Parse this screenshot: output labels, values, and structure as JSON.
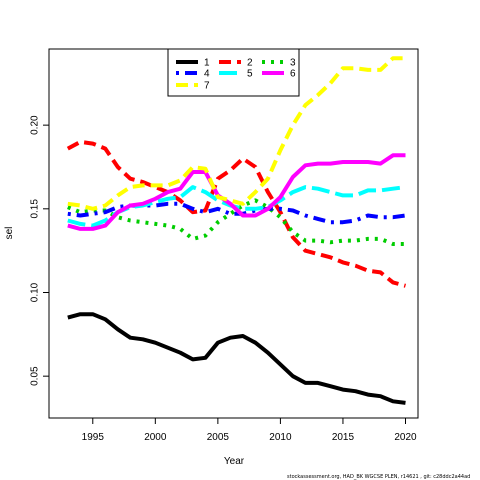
{
  "chart_data": {
    "type": "line",
    "title": "",
    "xlabel": "Year",
    "ylabel": "sel",
    "xlim": [
      1991.5,
      2021
    ],
    "ylim": [
      0.025,
      0.2455
    ],
    "x_ticks": [
      1995,
      2000,
      2005,
      2010,
      2015,
      2020
    ],
    "y_ticks": [
      0.05,
      0.1,
      0.15,
      0.2
    ],
    "y_tick_labels": [
      "0.05",
      "0.10",
      "0.15",
      "0.20"
    ],
    "legend_position": "top-center",
    "x": [
      1993,
      1994,
      1995,
      1996,
      1997,
      1998,
      1999,
      2000,
      2001,
      2002,
      2003,
      2004,
      2005,
      2006,
      2007,
      2008,
      2009,
      2010,
      2011,
      2012,
      2013,
      2014,
      2015,
      2016,
      2017,
      2018,
      2019,
      2020
    ],
    "series": [
      {
        "name": "1",
        "color": "#000000",
        "dash": "solid",
        "values": [
          0.085,
          0.087,
          0.087,
          0.084,
          0.078,
          0.073,
          0.072,
          0.07,
          0.067,
          0.064,
          0.06,
          0.061,
          0.07,
          0.073,
          0.074,
          0.07,
          0.064,
          0.057,
          0.05,
          0.046,
          0.046,
          0.044,
          0.042,
          0.041,
          0.039,
          0.038,
          0.035,
          0.034
        ]
      },
      {
        "name": "2",
        "color": "#ff0000",
        "dash": "dashed",
        "values": [
          0.186,
          0.19,
          0.189,
          0.186,
          0.175,
          0.168,
          0.166,
          0.163,
          0.16,
          0.155,
          0.148,
          0.149,
          0.168,
          0.173,
          0.18,
          0.175,
          0.16,
          0.148,
          0.133,
          0.125,
          0.123,
          0.121,
          0.118,
          0.116,
          0.113,
          0.112,
          0.106,
          0.104
        ]
      },
      {
        "name": "3",
        "color": "#00cd00",
        "dash": "dotted",
        "values": [
          0.151,
          0.148,
          0.149,
          0.149,
          0.145,
          0.143,
          0.142,
          0.141,
          0.14,
          0.138,
          0.132,
          0.134,
          0.142,
          0.147,
          0.152,
          0.155,
          0.151,
          0.145,
          0.136,
          0.131,
          0.131,
          0.13,
          0.131,
          0.131,
          0.132,
          0.132,
          0.129,
          0.129
        ]
      },
      {
        "name": "4",
        "color": "#0000ff",
        "dash": "dashdot",
        "values": [
          0.147,
          0.146,
          0.147,
          0.148,
          0.151,
          0.152,
          0.152,
          0.152,
          0.153,
          0.153,
          0.15,
          0.148,
          0.15,
          0.147,
          0.147,
          0.149,
          0.15,
          0.15,
          0.149,
          0.146,
          0.144,
          0.142,
          0.142,
          0.143,
          0.146,
          0.145,
          0.145,
          0.146
        ]
      },
      {
        "name": "5",
        "color": "#00ffff",
        "dash": "longdash",
        "values": [
          0.143,
          0.141,
          0.14,
          0.143,
          0.148,
          0.151,
          0.152,
          0.154,
          0.156,
          0.157,
          0.163,
          0.16,
          0.155,
          0.152,
          0.15,
          0.15,
          0.151,
          0.155,
          0.16,
          0.163,
          0.162,
          0.16,
          0.158,
          0.158,
          0.161,
          0.161,
          0.162,
          0.163
        ]
      },
      {
        "name": "6",
        "color": "#ff00ff",
        "dash": "solid",
        "values": [
          0.14,
          0.138,
          0.138,
          0.14,
          0.148,
          0.152,
          0.153,
          0.156,
          0.16,
          0.162,
          0.172,
          0.172,
          0.158,
          0.153,
          0.146,
          0.146,
          0.15,
          0.157,
          0.169,
          0.176,
          0.177,
          0.177,
          0.178,
          0.178,
          0.178,
          0.177,
          0.182,
          0.182
        ]
      },
      {
        "name": "7",
        "color": "#ffff00",
        "dash": "dashed",
        "values": [
          0.153,
          0.152,
          0.15,
          0.152,
          0.158,
          0.163,
          0.164,
          0.164,
          0.164,
          0.167,
          0.175,
          0.174,
          0.157,
          0.155,
          0.153,
          0.16,
          0.168,
          0.185,
          0.2,
          0.212,
          0.218,
          0.225,
          0.234,
          0.234,
          0.233,
          0.233,
          0.24,
          0.24
        ]
      }
    ]
  },
  "footer": "stockassessment.org, HAD_BK WGCSE PLEN, r14621 , git: c28ddc2a44ad"
}
